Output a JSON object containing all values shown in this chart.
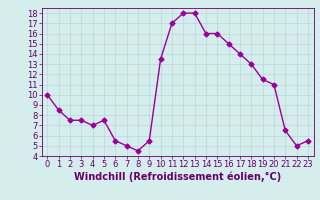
{
  "x": [
    0,
    1,
    2,
    3,
    4,
    5,
    6,
    7,
    8,
    9,
    10,
    11,
    12,
    13,
    14,
    15,
    16,
    17,
    18,
    19,
    20,
    21,
    22,
    23
  ],
  "y": [
    10,
    8.5,
    7.5,
    7.5,
    7.0,
    7.5,
    5.5,
    5.0,
    4.5,
    5.5,
    13.5,
    17.0,
    18.0,
    18.0,
    16.0,
    16.0,
    15.0,
    14.0,
    13.0,
    11.5,
    11.0,
    6.5,
    5.0,
    5.5
  ],
  "line_color": "#990099",
  "marker": "D",
  "marker_size": 2.5,
  "xlabel": "Windchill (Refroidissement éolien,°C)",
  "xlabel_fontsize": 7,
  "ylim": [
    4,
    18.5
  ],
  "xlim": [
    -0.5,
    23.5
  ],
  "yticks": [
    4,
    5,
    6,
    7,
    8,
    9,
    10,
    11,
    12,
    13,
    14,
    15,
    16,
    17,
    18
  ],
  "xticks": [
    0,
    1,
    2,
    3,
    4,
    5,
    6,
    7,
    8,
    9,
    10,
    11,
    12,
    13,
    14,
    15,
    16,
    17,
    18,
    19,
    20,
    21,
    22,
    23
  ],
  "bg_color": "#d5eeed",
  "grid_color": "#b8d8d8",
  "tick_fontsize": 6,
  "line_width": 1.0,
  "text_color": "#660066"
}
